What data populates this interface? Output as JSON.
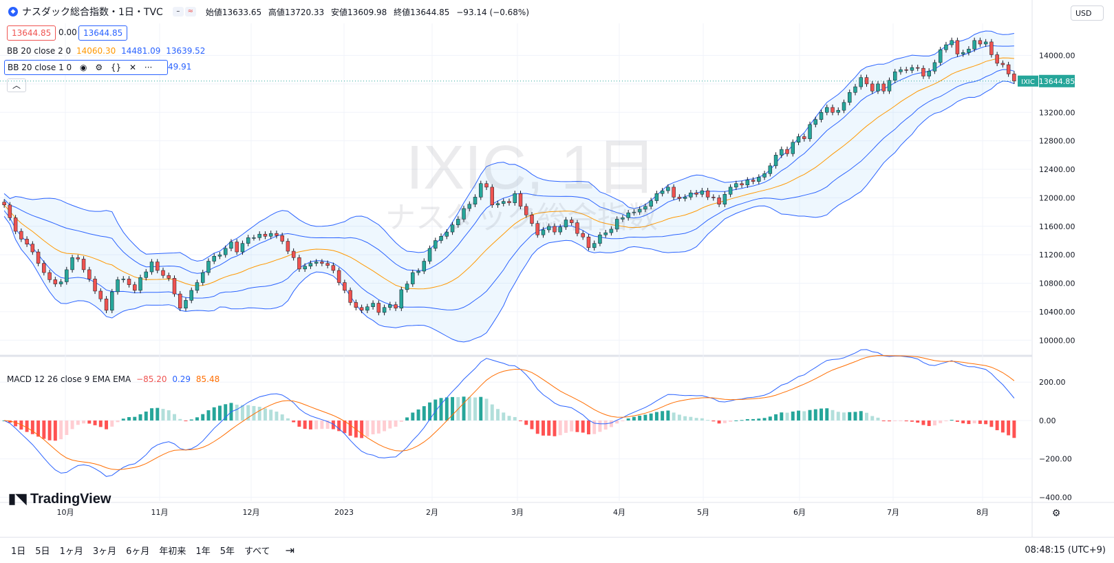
{
  "header": {
    "symbol_title": "ナスダック総合指数・1日・TVC",
    "open_label": "始値",
    "open": "13633.65",
    "high_label": "高値",
    "high": "13720.33",
    "low_label": "安値",
    "low": "13609.98",
    "close_label": "終値",
    "close": "13644.85",
    "change": "−93.14 (−0.68%)"
  },
  "price_box": "13644.85",
  "zero_box": "0.00",
  "price_box2": "13644.85",
  "bb1": {
    "label": "BB 20 close 2 0",
    "basis": "14060.30",
    "upper": "14481.09",
    "lower": "13639.52"
  },
  "bb2": {
    "label": "BB 20 close 1 0",
    "value": "49.91"
  },
  "macd": {
    "label": "MACD 12 26 close 9 EMA EMA",
    "hist": "−85.20",
    "macd": "0.29",
    "signal": "85.48"
  },
  "watermark": {
    "main": "IXIC, 1日",
    "sub": "ナスダック総合指数"
  },
  "currency": "USD",
  "last_tag": {
    "symbol": "IXIC",
    "price": "13644.85"
  },
  "timeframes": [
    "1日",
    "5日",
    "1ヶ月",
    "3ヶ月",
    "6ヶ月",
    "年初来",
    "1年",
    "5年",
    "すべて"
  ],
  "clock": "08:48:15 (UTC+9)",
  "brand": "TradingView",
  "colors": {
    "up": "#26a69a",
    "down": "#ef5350",
    "bb_band": "#2962ff",
    "bb_basis": "#ff9800",
    "macd_line": "#2962ff",
    "signal_line": "#ff6d00"
  },
  "chart_data": {
    "type": "candlestick",
    "price_axis_ticks": [
      "14000.00",
      "13600.00",
      "13200.00",
      "12800.00",
      "12400.00",
      "12000.00",
      "11600.00",
      "11200.00",
      "10800.00",
      "10400.00",
      "10000.00"
    ],
    "price_tick_values": [
      14000,
      13600,
      13200,
      12800,
      12400,
      12000,
      11600,
      11200,
      10800,
      10400,
      10000
    ],
    "macd_axis_ticks": [
      "200.00",
      "0.00",
      "−200.00",
      "−400.00"
    ],
    "macd_tick_values": [
      200,
      0,
      -200,
      -400
    ],
    "x_ticks": [
      "10月",
      "11月",
      "12月",
      "2023",
      "2月",
      "3月",
      "4月",
      "5月",
      "6月",
      "7月",
      "8月"
    ],
    "price_ylim": [
      9800,
      14450
    ],
    "macd_ylim": [
      -420,
      330
    ],
    "close_series": [
      11900,
      11720,
      11530,
      11420,
      11350,
      11240,
      11080,
      10950,
      10850,
      10790,
      10820,
      10990,
      11160,
      11140,
      10990,
      10860,
      10690,
      10580,
      10420,
      10680,
      10850,
      10860,
      10780,
      10700,
      10880,
      10960,
      11100,
      10980,
      10910,
      10870,
      10650,
      10450,
      10560,
      10700,
      10810,
      10950,
      11110,
      11180,
      11200,
      11290,
      11380,
      11240,
      11360,
      11440,
      11440,
      11490,
      11460,
      11500,
      11470,
      11390,
      11250,
      11160,
      11000,
      11040,
      11080,
      11100,
      11080,
      11050,
      10980,
      10810,
      10700,
      10530,
      10460,
      10420,
      10470,
      10520,
      10390,
      10460,
      10500,
      10450,
      10710,
      10790,
      10950,
      10970,
      11110,
      11290,
      11400,
      11460,
      11520,
      11620,
      11700,
      11850,
      11910,
      12010,
      12200,
      12150,
      11900,
      11920,
      11950,
      11930,
      12060,
      11880,
      11760,
      11640,
      11480,
      11550,
      11600,
      11520,
      11590,
      11690,
      11650,
      11500,
      11450,
      11300,
      11360,
      11480,
      11510,
      11560,
      11700,
      11720,
      11790,
      11800,
      11840,
      11880,
      11960,
      12060,
      12100,
      12150,
      12010,
      11990,
      12010,
      12070,
      12050,
      12100,
      12010,
      12000,
      11910,
      12050,
      12150,
      12200,
      12180,
      12250,
      12230,
      12290,
      12340,
      12450,
      12600,
      12680,
      12620,
      12780,
      12860,
      12830,
      13030,
      13100,
      13200,
      13270,
      13200,
      13230,
      13340,
      13480,
      13560,
      13690,
      13600,
      13500,
      13600,
      13500,
      13650,
      13770,
      13800,
      13790,
      13830,
      13820,
      13710,
      13780,
      13900,
      14080,
      14150,
      14210,
      14020,
      14040,
      14090,
      14210,
      14160,
      14190,
      14010,
      13890,
      13870,
      13740,
      13640
    ]
  }
}
